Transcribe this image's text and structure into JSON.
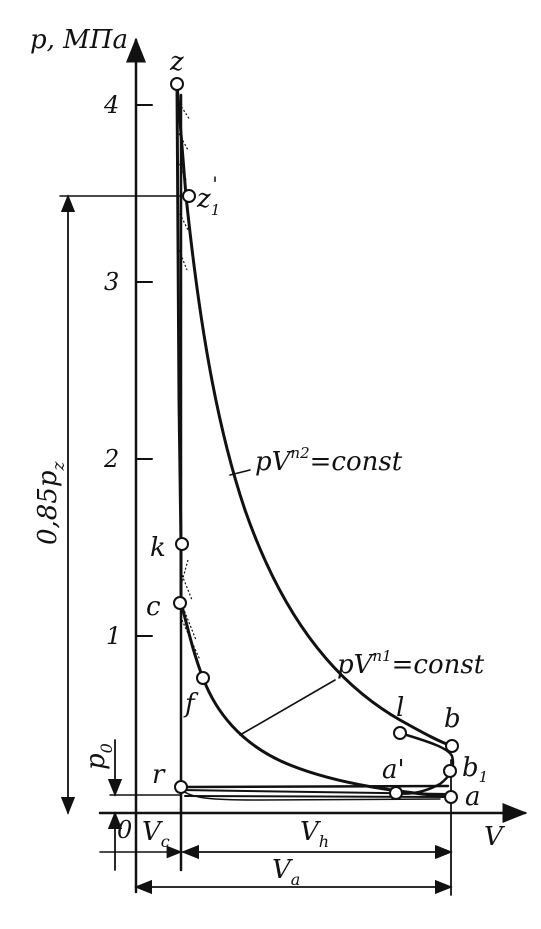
{
  "axes": {
    "y_label": "p, МПа",
    "x_label": "V",
    "origin": "0",
    "y_ticks": [
      "1",
      "2",
      "3",
      "4"
    ]
  },
  "points": {
    "z": "z",
    "z1": "z",
    "z1_sub": "1",
    "z1_prime": "'",
    "k": "k",
    "c": "c",
    "f": "f",
    "r": "r",
    "l": "l",
    "b": "b",
    "b1": "b",
    "b1_sub": "1",
    "a_prime": "a'",
    "a": "a"
  },
  "curves": {
    "n2_text": "pV",
    "n2_exp": "n2",
    "n2_rhs": "=const",
    "n1_text": "pV",
    "n1_exp": "n1",
    "n1_rhs": "=const"
  },
  "dimensions": {
    "pz_fraction": "0,85p",
    "pz_sub": "z",
    "p0": "p",
    "p0_sub": "0",
    "Vc": "V",
    "Vc_sub": "c",
    "Vh": "V",
    "Vh_sub": "h",
    "Va": "V",
    "Va_sub": "a"
  },
  "colors": {
    "ink": "#111111",
    "background": "#ffffff"
  }
}
